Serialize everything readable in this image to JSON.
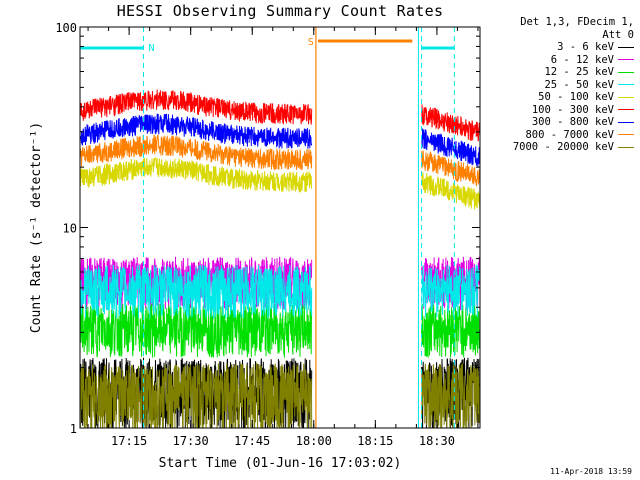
{
  "chart_data": {
    "type": "line",
    "title": "HESSI Observing Summary Count Rates",
    "xlabel": "Start Time (01-Jun-16 17:03:02)",
    "ylabel": "Count Rate (s⁻¹ detector⁻¹)",
    "y_scale": "log",
    "ylim": [
      1,
      100
    ],
    "y_ticks": [
      "1",
      "10",
      "100"
    ],
    "x_range_utc": [
      "17:03:02",
      "18:40:30"
    ],
    "x_ticks": [
      "17:15",
      "17:30",
      "17:45",
      "18:00",
      "18:15",
      "18:30"
    ],
    "legend_header": [
      "Det 1,3, FDecim 1,",
      "Att 0"
    ],
    "legend_position": "right",
    "series": [
      {
        "name": "3 - 6 keV",
        "color": "#000000",
        "typical_rate": 1.6
      },
      {
        "name": "6 - 12 keV",
        "color": "#e000e0",
        "typical_rate": 5.5
      },
      {
        "name": "12 - 25 keV",
        "color": "#00e000",
        "typical_rate": 3.2
      },
      {
        "name": "25 - 50 keV",
        "color": "#00e8e8",
        "typical_rate": 5.0
      },
      {
        "name": "50 - 100 keV",
        "color": "#d8d800",
        "typical_rate": 17
      },
      {
        "name": "100 - 300 keV",
        "color": "#ff0000",
        "typical_rate": 37
      },
      {
        "name": "300 - 800 keV",
        "color": "#0000ff",
        "typical_rate": 28
      },
      {
        "name": "800 - 7000 keV",
        "color": "#ff8000",
        "typical_rate": 22
      },
      {
        "name": "7000 - 20000 keV",
        "color": "#7f7f00",
        "typical_rate": 1.5
      }
    ],
    "data_intervals_utc": [
      [
        "17:03:02",
        "17:59:30"
      ],
      [
        "18:26:15",
        "18:40:30"
      ]
    ],
    "attenuator_state": {
      "label": "S",
      "interval_utc": [
        "18:01:00",
        "18:24:00"
      ],
      "color": "#ff8000"
    },
    "night_flags": [
      {
        "label": "N",
        "interval_utc": [
          "17:03:02",
          "17:18:30"
        ],
        "color": "#00e8e8"
      },
      {
        "interval_utc": [
          "18:26:15",
          "18:34:15"
        ],
        "color": "#00e8e8"
      }
    ],
    "markers_utc": [
      "17:03:02",
      "17:18:30",
      "18:25:30",
      "18:26:15",
      "18:34:15"
    ]
  },
  "footer": {
    "timestamp": "11-Apr-2018 13:59"
  }
}
